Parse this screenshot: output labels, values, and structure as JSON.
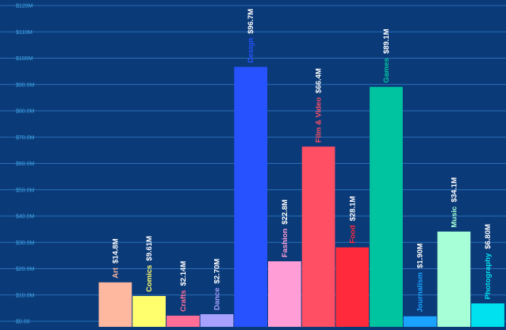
{
  "chart_data": {
    "type": "bar",
    "title": "",
    "xlabel": "",
    "ylabel": "",
    "ylim": [
      0,
      120
    ],
    "y_ticks": [
      {
        "value": 0,
        "label": "$0.00"
      },
      {
        "value": 10,
        "label": "$10.0M"
      },
      {
        "value": 20,
        "label": "$20.0M"
      },
      {
        "value": 30,
        "label": "$30.0M"
      },
      {
        "value": 40,
        "label": "$40.0M"
      },
      {
        "value": 50,
        "label": "$50.0M"
      },
      {
        "value": 60,
        "label": "$60.0M"
      },
      {
        "value": 70,
        "label": "$70.0M"
      },
      {
        "value": 80,
        "label": "$80.0M"
      },
      {
        "value": 90,
        "label": "$90.0M"
      },
      {
        "value": 100,
        "label": "$100M"
      },
      {
        "value": 110,
        "label": "$110M"
      },
      {
        "value": 120,
        "label": "$120M"
      }
    ],
    "grid": true,
    "legend": "none",
    "categories": [
      "Art",
      "Comics",
      "Crafts",
      "Dance",
      "Design",
      "Fashion",
      "Film & Video",
      "Food",
      "Games",
      "Journalism",
      "Music",
      "Photography"
    ],
    "values": [
      14.8,
      9.61,
      2.14,
      2.7,
      96.7,
      22.8,
      66.4,
      28.1,
      89.1,
      1.9,
      34.1,
      6.8
    ],
    "value_labels": [
      "$14.8M",
      "$9.61M",
      "$2.14M",
      "$2.70M",
      "$96.7M",
      "$22.8M",
      "$66.4M",
      "$28.1M",
      "$89.1M",
      "$1.90M",
      "$34.1M",
      "$6.80M"
    ],
    "colors": [
      "#ffb8a0",
      "#ffff6e",
      "#ff6e96",
      "#a8a0ff",
      "#2653ff",
      "#ff9ed6",
      "#ff4f64",
      "#ff2a3c",
      "#00c4a0",
      "#1aa3ff",
      "#a6ffd6",
      "#00e1f0"
    ],
    "label_colors": [
      "#ffb8a0",
      "#ffff6e",
      "#ff6e96",
      "#a8a0ff",
      "#2653ff",
      "#ff9ed6",
      "#ff4f64",
      "#ff2a3c",
      "#00c4a0",
      "#1aa3ff",
      "#a6ffd6",
      "#00e1f0"
    ]
  }
}
